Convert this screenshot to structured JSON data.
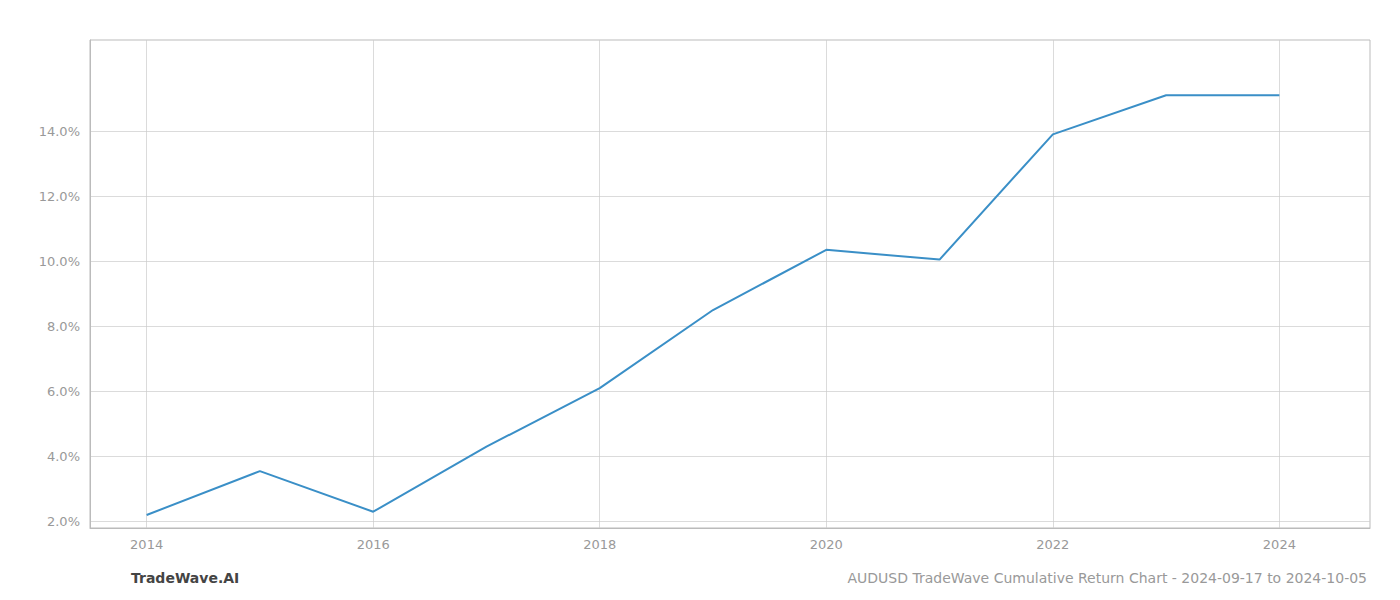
{
  "chart_data": {
    "type": "line",
    "x": [
      2014,
      2015,
      2016,
      2017,
      2018,
      2019,
      2020,
      2021,
      2022,
      2023,
      2024
    ],
    "values": [
      2.2,
      3.55,
      2.3,
      4.3,
      6.1,
      8.5,
      10.35,
      10.05,
      13.9,
      15.1,
      15.1
    ],
    "color": "#3a8fc7",
    "xlim": [
      2013.5,
      2024.8
    ],
    "ylim": [
      1.8,
      16.8
    ],
    "xticks": [
      2014,
      2016,
      2018,
      2020,
      2022,
      2024
    ],
    "yticks": [
      {
        "value": 2.0,
        "label": "2.0%"
      },
      {
        "value": 4.0,
        "label": "4.0%"
      },
      {
        "value": 6.0,
        "label": "6.0%"
      },
      {
        "value": 8.0,
        "label": "8.0%"
      },
      {
        "value": 10.0,
        "label": "10.0%"
      },
      {
        "value": 12.0,
        "label": "12.0%"
      },
      {
        "value": 14.0,
        "label": "14.0%"
      }
    ],
    "grid": true,
    "annotations": [
      "TradeWave.AI",
      "AUDUSD TradeWave Cumulative Return Chart - 2024-09-17 to 2024-10-05"
    ]
  }
}
